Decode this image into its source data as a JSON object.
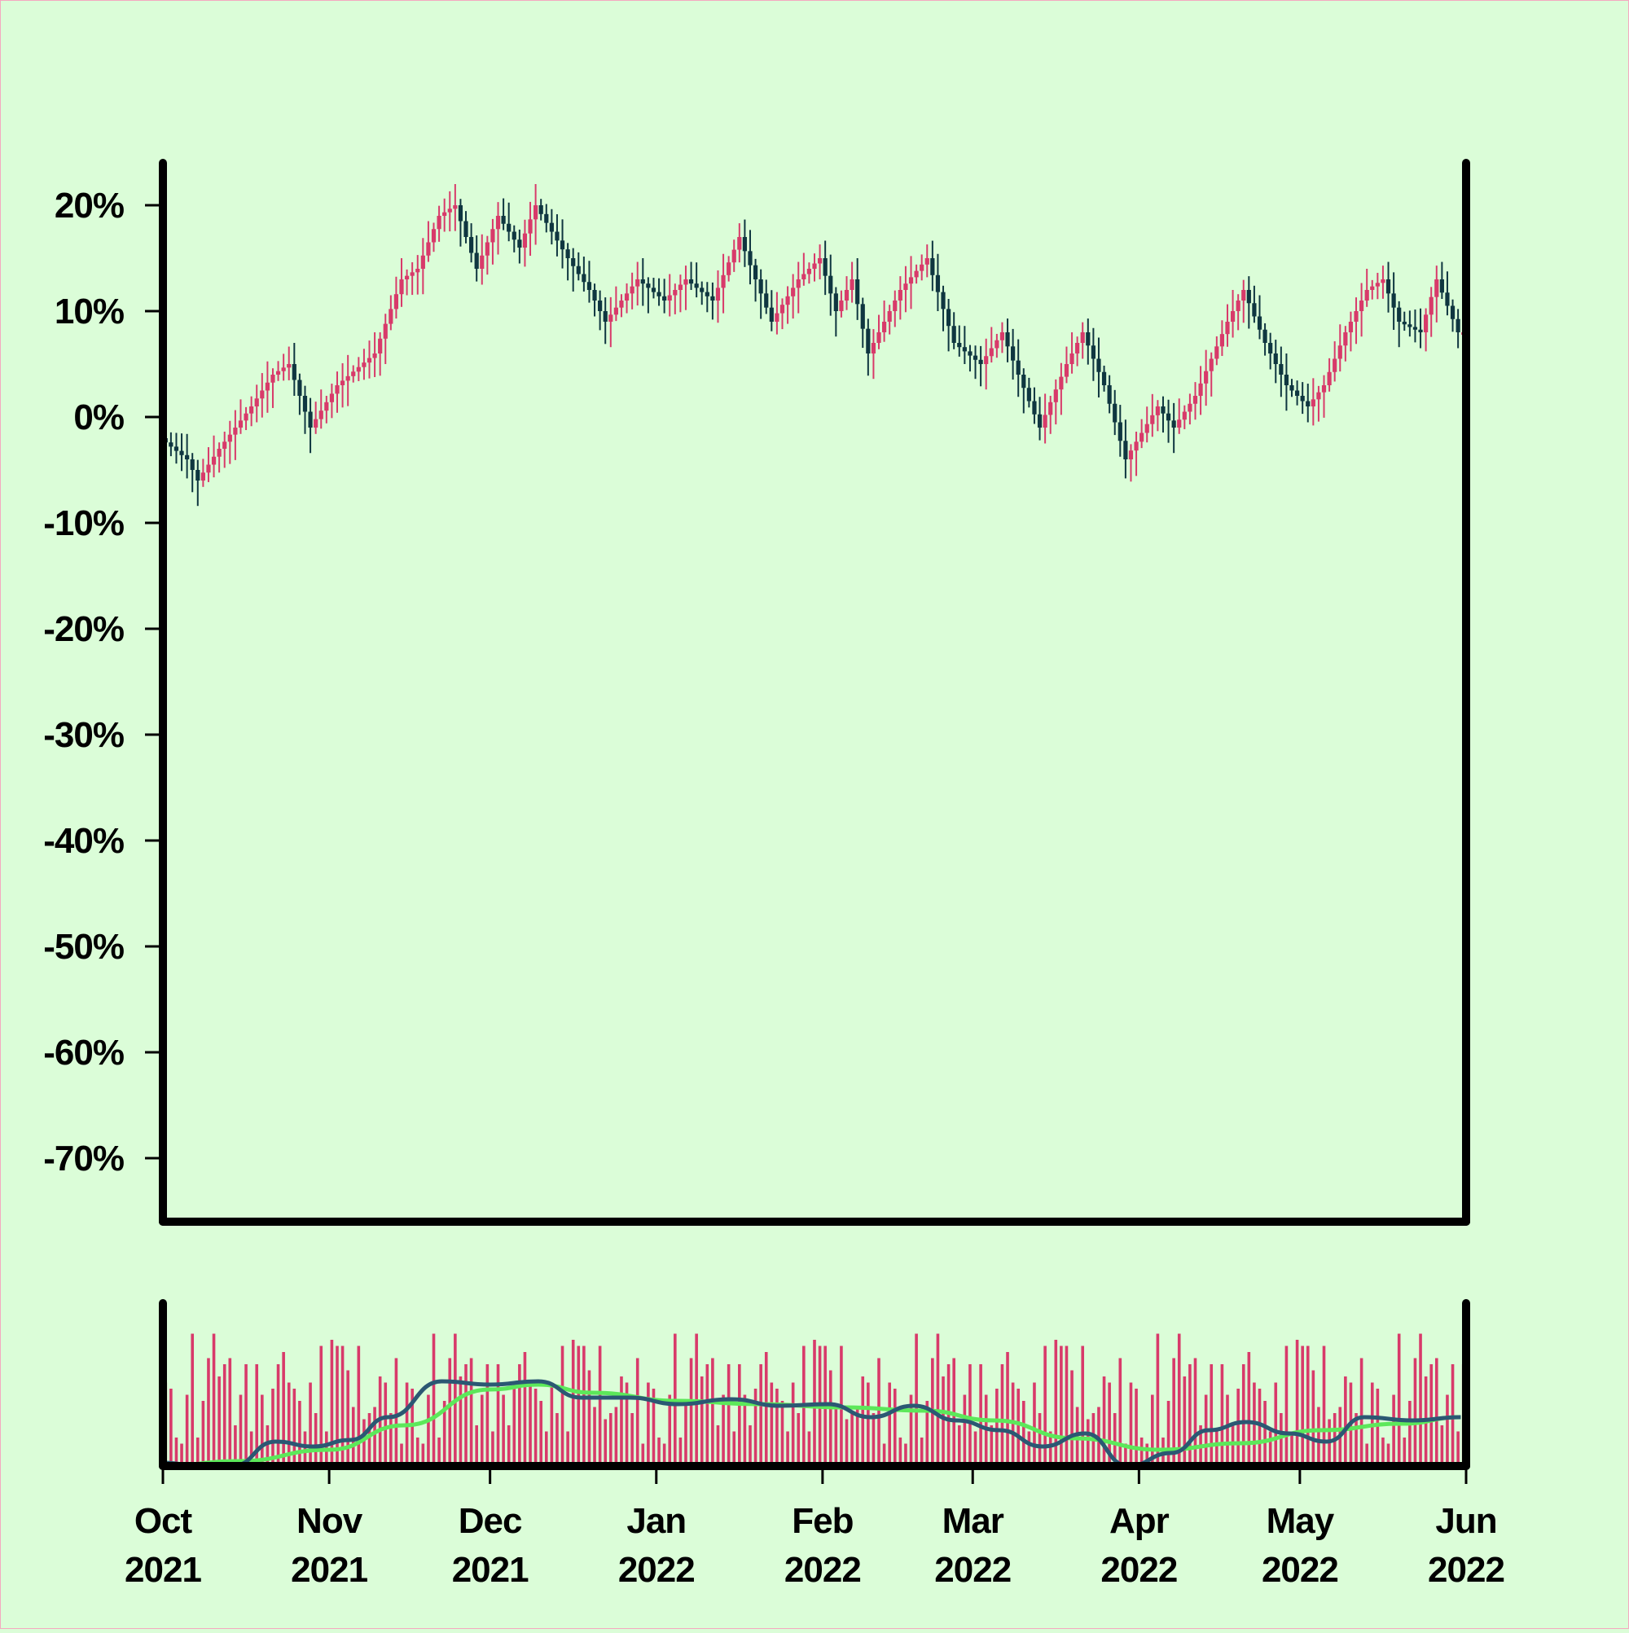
{
  "chart_data": {
    "type": "candlestick",
    "colors": {
      "background": "#dbfdd8",
      "up_candle": "#d83a6a",
      "down_candle": "#0f3640",
      "volume_bar": "#d83a6a",
      "volume_ma_short": "#2b5873",
      "volume_ma_long": "#5ce85a",
      "axis": "#000000"
    },
    "price_panel": {
      "y_unit": "percent change",
      "ylim": [
        -76,
        24
      ],
      "y_ticks": [
        {
          "value": 20,
          "label": "20%"
        },
        {
          "value": 10,
          "label": "10%"
        },
        {
          "value": 0,
          "label": "0%"
        },
        {
          "value": -10,
          "label": "-10%"
        },
        {
          "value": -20,
          "label": "-20%"
        },
        {
          "value": -30,
          "label": "-30%"
        },
        {
          "value": -40,
          "label": "-40%"
        },
        {
          "value": -50,
          "label": "-50%"
        },
        {
          "value": -60,
          "label": "-60%"
        },
        {
          "value": -70,
          "label": "-70%"
        }
      ],
      "close_path": [
        {
          "date": "2021-10-01",
          "value": -2
        },
        {
          "date": "2021-10-06",
          "value": -4
        },
        {
          "date": "2021-10-08",
          "value": -6
        },
        {
          "date": "2021-10-12",
          "value": -3
        },
        {
          "date": "2021-10-18",
          "value": 1
        },
        {
          "date": "2021-10-22",
          "value": 4
        },
        {
          "date": "2021-10-25",
          "value": 5
        },
        {
          "date": "2021-10-29",
          "value": -1
        },
        {
          "date": "2021-11-03",
          "value": 3
        },
        {
          "date": "2021-11-10",
          "value": 6
        },
        {
          "date": "2021-11-15",
          "value": 13
        },
        {
          "date": "2021-11-18",
          "value": 14
        },
        {
          "date": "2021-11-22",
          "value": 19
        },
        {
          "date": "2021-11-25",
          "value": 20
        },
        {
          "date": "2021-11-29",
          "value": 14
        },
        {
          "date": "2021-12-03",
          "value": 19
        },
        {
          "date": "2021-12-07",
          "value": 16
        },
        {
          "date": "2021-12-10",
          "value": 20
        },
        {
          "date": "2021-12-16",
          "value": 15
        },
        {
          "date": "2021-12-20",
          "value": 12
        },
        {
          "date": "2021-12-23",
          "value": 9
        },
        {
          "date": "2021-12-29",
          "value": 13
        },
        {
          "date": "2022-01-03",
          "value": 11
        },
        {
          "date": "2022-01-07",
          "value": 13
        },
        {
          "date": "2022-01-12",
          "value": 11
        },
        {
          "date": "2022-01-17",
          "value": 17
        },
        {
          "date": "2022-01-23",
          "value": 9
        },
        {
          "date": "2022-01-28",
          "value": 13
        },
        {
          "date": "2022-02-01",
          "value": 15
        },
        {
          "date": "2022-02-04",
          "value": 10
        },
        {
          "date": "2022-02-07",
          "value": 13
        },
        {
          "date": "2022-02-10",
          "value": 6
        },
        {
          "date": "2022-02-16",
          "value": 12
        },
        {
          "date": "2022-02-21",
          "value": 15
        },
        {
          "date": "2022-02-26",
          "value": 7
        },
        {
          "date": "2022-03-03",
          "value": 5
        },
        {
          "date": "2022-03-07",
          "value": 8
        },
        {
          "date": "2022-03-10",
          "value": 4
        },
        {
          "date": "2022-03-14",
          "value": -1
        },
        {
          "date": "2022-03-19",
          "value": 5
        },
        {
          "date": "2022-03-22",
          "value": 8
        },
        {
          "date": "2022-03-26",
          "value": 3
        },
        {
          "date": "2022-03-30",
          "value": -4
        },
        {
          "date": "2022-04-05",
          "value": 1
        },
        {
          "date": "2022-04-08",
          "value": -1
        },
        {
          "date": "2022-04-12",
          "value": 2
        },
        {
          "date": "2022-04-18",
          "value": 9
        },
        {
          "date": "2022-04-21",
          "value": 12
        },
        {
          "date": "2022-04-25",
          "value": 7
        },
        {
          "date": "2022-04-29",
          "value": 3
        },
        {
          "date": "2022-05-03",
          "value": 1
        },
        {
          "date": "2022-05-06",
          "value": 3
        },
        {
          "date": "2022-05-10",
          "value": 8
        },
        {
          "date": "2022-05-14",
          "value": 12
        },
        {
          "date": "2022-05-17",
          "value": 13
        },
        {
          "date": "2022-05-20",
          "value": 9
        },
        {
          "date": "2022-05-24",
          "value": 8
        },
        {
          "date": "2022-05-27",
          "value": 13
        },
        {
          "date": "2022-05-31",
          "value": 8
        }
      ]
    },
    "volume_panel": {
      "bar_pattern": [
        0.55,
        0.25,
        0.85,
        0.4,
        0.7,
        0.2,
        0.95,
        0.5,
        0.3,
        0.65,
        0.15,
        0.8,
        0.45,
        0.6,
        0.1,
        0.75,
        0.35,
        0.9,
        0.55,
        0.2,
        0.7,
        0.4,
        0.05,
        0.6,
        0.85,
        0.3,
        0.5,
        0.15,
        0.75,
        0.45
      ],
      "ma_short": [
        {
          "date": "2021-10-01",
          "value": 0.02
        },
        {
          "date": "2021-10-08",
          "value": 0.0
        },
        {
          "date": "2021-10-14",
          "value": 0.0
        },
        {
          "date": "2021-10-22",
          "value": 0.15
        },
        {
          "date": "2021-10-29",
          "value": 0.12
        },
        {
          "date": "2021-11-05",
          "value": 0.16
        },
        {
          "date": "2021-11-12",
          "value": 0.3
        },
        {
          "date": "2021-11-22",
          "value": 0.52
        },
        {
          "date": "2021-12-01",
          "value": 0.5
        },
        {
          "date": "2021-12-10",
          "value": 0.52
        },
        {
          "date": "2021-12-18",
          "value": 0.42
        },
        {
          "date": "2021-12-27",
          "value": 0.42
        },
        {
          "date": "2022-01-05",
          "value": 0.38
        },
        {
          "date": "2022-01-15",
          "value": 0.41
        },
        {
          "date": "2022-01-24",
          "value": 0.37
        },
        {
          "date": "2022-02-02",
          "value": 0.38
        },
        {
          "date": "2022-02-10",
          "value": 0.3
        },
        {
          "date": "2022-02-18",
          "value": 0.37
        },
        {
          "date": "2022-02-26",
          "value": 0.28
        },
        {
          "date": "2022-03-06",
          "value": 0.22
        },
        {
          "date": "2022-03-14",
          "value": 0.12
        },
        {
          "date": "2022-03-22",
          "value": 0.2
        },
        {
          "date": "2022-03-30",
          "value": 0.0
        },
        {
          "date": "2022-04-07",
          "value": 0.08
        },
        {
          "date": "2022-04-14",
          "value": 0.22
        },
        {
          "date": "2022-04-21",
          "value": 0.27
        },
        {
          "date": "2022-04-29",
          "value": 0.2
        },
        {
          "date": "2022-05-06",
          "value": 0.15
        },
        {
          "date": "2022-05-13",
          "value": 0.3
        },
        {
          "date": "2022-05-22",
          "value": 0.28
        },
        {
          "date": "2022-05-31",
          "value": 0.3
        }
      ],
      "ma_long": [
        {
          "date": "2021-10-01",
          "value": 0.0
        },
        {
          "date": "2021-10-15",
          "value": 0.03
        },
        {
          "date": "2021-11-01",
          "value": 0.1
        },
        {
          "date": "2021-11-15",
          "value": 0.25
        },
        {
          "date": "2021-12-01",
          "value": 0.47
        },
        {
          "date": "2021-12-10",
          "value": 0.5
        },
        {
          "date": "2021-12-20",
          "value": 0.45
        },
        {
          "date": "2022-01-05",
          "value": 0.4
        },
        {
          "date": "2022-01-20",
          "value": 0.38
        },
        {
          "date": "2022-02-05",
          "value": 0.36
        },
        {
          "date": "2022-02-20",
          "value": 0.34
        },
        {
          "date": "2022-03-05",
          "value": 0.28
        },
        {
          "date": "2022-03-20",
          "value": 0.17
        },
        {
          "date": "2022-04-05",
          "value": 0.1
        },
        {
          "date": "2022-04-20",
          "value": 0.14
        },
        {
          "date": "2022-05-05",
          "value": 0.22
        },
        {
          "date": "2022-05-20",
          "value": 0.26
        },
        {
          "date": "2022-05-31",
          "value": 0.3
        }
      ]
    },
    "x_axis": {
      "start": "2021-10-01",
      "end": "2022-06-01",
      "ticks": [
        {
          "date": "2021-10-01",
          "month": "Oct",
          "year": "2021"
        },
        {
          "date": "2021-11-01",
          "month": "Nov",
          "year": "2021"
        },
        {
          "date": "2021-12-01",
          "month": "Dec",
          "year": "2021"
        },
        {
          "date": "2022-01-01",
          "month": "Jan",
          "year": "2022"
        },
        {
          "date": "2022-02-01",
          "month": "Feb",
          "year": "2022"
        },
        {
          "date": "2022-03-01",
          "month": "Mar",
          "year": "2022"
        },
        {
          "date": "2022-04-01",
          "month": "Apr",
          "year": "2022"
        },
        {
          "date": "2022-05-01",
          "month": "May",
          "year": "2022"
        },
        {
          "date": "2022-06-01",
          "month": "Jun",
          "year": "2022"
        }
      ]
    },
    "grid": false,
    "legend": "none"
  }
}
